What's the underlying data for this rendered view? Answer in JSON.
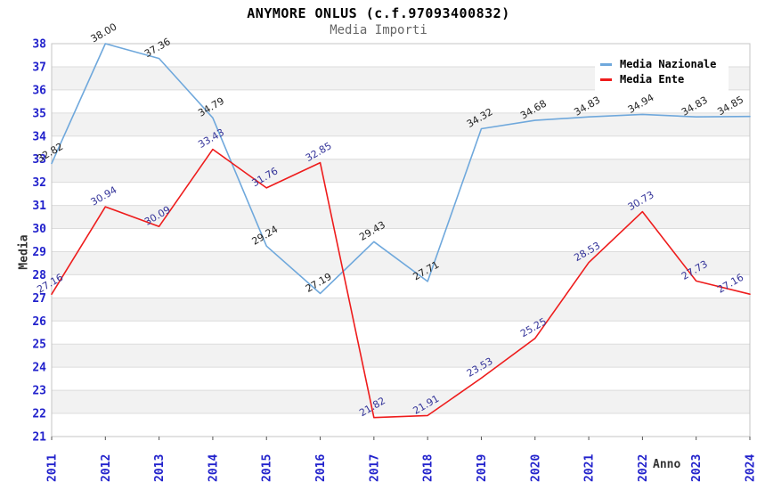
{
  "title": "ANYMORE ONLUS (c.f.97093400832)",
  "subtitle": "Media Importi",
  "legend": {
    "items": [
      {
        "label": "Media Nazionale",
        "color": "#6FA8DC"
      },
      {
        "label": "Media Ente",
        "color": "#EE1C1C"
      }
    ]
  },
  "axes": {
    "y_title": "Media",
    "x_title": "Anno",
    "y_ticks": [
      21,
      22,
      23,
      24,
      25,
      26,
      27,
      28,
      29,
      30,
      31,
      32,
      33,
      34,
      35,
      36,
      37,
      38
    ],
    "x_ticks": [
      "2011",
      "2012",
      "2013",
      "2014",
      "2015",
      "2016",
      "2017",
      "2018",
      "2019",
      "2020",
      "2021",
      "2022",
      "2023",
      "2024"
    ]
  },
  "colors": {
    "series_nazionale": "#6FA8DC",
    "series_ente": "#EE1C1C",
    "tick_label": "#2222CC",
    "label_nazionale": "#222222",
    "label_ente": "#333399",
    "grid_line": "#DCDCDC",
    "band_fill": "#F2F2F2",
    "plot_border": "#C4C4C4",
    "tick_mark": "#555555"
  },
  "chart_data": {
    "type": "line",
    "title": "ANYMORE ONLUS (c.f.97093400832)",
    "subtitle": "Media Importi",
    "xlabel": "Anno",
    "ylabel": "Media",
    "x": [
      2011,
      2012,
      2013,
      2014,
      2015,
      2016,
      2017,
      2018,
      2019,
      2020,
      2021,
      2022,
      2023,
      2024
    ],
    "ylim": [
      21,
      38
    ],
    "ytick_step": 1,
    "grid": true,
    "alternating_bands": true,
    "legend_position": "top-right",
    "point_labels": "two-decimal values shown rotated above each point",
    "series": [
      {
        "name": "Media Nazionale",
        "color": "#6FA8DC",
        "label_color": "#222222",
        "values": [
          32.82,
          38.0,
          37.36,
          34.79,
          29.24,
          27.19,
          29.43,
          27.71,
          34.32,
          34.68,
          34.83,
          34.94,
          34.83,
          34.85
        ]
      },
      {
        "name": "Media Ente",
        "color": "#EE1C1C",
        "label_color": "#333399",
        "values": [
          27.16,
          30.94,
          30.09,
          33.43,
          31.76,
          32.85,
          21.82,
          21.91,
          23.53,
          25.25,
          28.53,
          30.73,
          27.73,
          27.16
        ]
      }
    ]
  }
}
